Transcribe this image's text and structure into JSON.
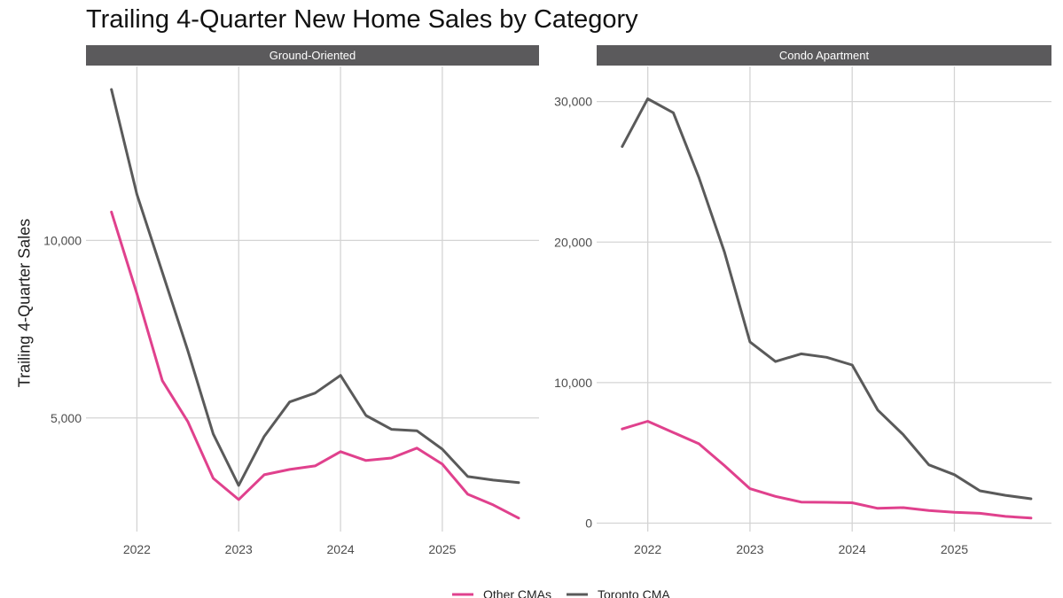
{
  "chart_data": {
    "type": "line",
    "title": "Trailing 4-Quarter New Home Sales by Category",
    "ylabel": "Trailing 4-Quarter Sales",
    "xlabel": "",
    "legend": {
      "position": "bottom",
      "entries": [
        {
          "name": "Other CMAs",
          "color": "#e0418d"
        },
        {
          "name": "Toronto CMA",
          "color": "#5a5a5a"
        }
      ]
    },
    "x": [
      2021.75,
      2022.0,
      2022.25,
      2022.5,
      2022.75,
      2023.0,
      2023.25,
      2023.5,
      2023.75,
      2024.0,
      2024.25,
      2024.5,
      2024.75,
      2025.0,
      2025.25,
      2025.5,
      2025.75
    ],
    "x_ticks": [
      2022,
      2023,
      2024,
      2025
    ],
    "x_tick_labels": [
      "2022",
      "2023",
      "2024",
      "2025"
    ],
    "xlim": [
      2021.5,
      2025.95
    ],
    "panels": [
      {
        "name": "Ground-Oriented",
        "ylim": [
          1800,
          14900
        ],
        "y_ticks": [
          5000,
          10000
        ],
        "y_tick_labels": [
          "5,000",
          "10,000"
        ],
        "series": [
          {
            "name": "Other CMAs",
            "values": [
              10800,
              8500,
              6050,
              4900,
              3300,
              2700,
              3400,
              3550,
              3650,
              4050,
              3800,
              3870,
              4150,
              3700,
              2850,
              2550,
              2180
            ]
          },
          {
            "name": "Toronto CMA",
            "values": [
              14250,
              11300,
              9100,
              6900,
              4550,
              3100,
              4480,
              5450,
              5700,
              6200,
              5070,
              4680,
              4640,
              4120,
              3350,
              3250,
              3180
            ]
          }
        ]
      },
      {
        "name": "Condo Apartment",
        "ylim": [
          -600,
          32500
        ],
        "y_ticks": [
          0,
          10000,
          20000,
          30000
        ],
        "y_tick_labels": [
          "0",
          "10,000",
          "20,000",
          "30,000"
        ],
        "series": [
          {
            "name": "Other CMAs",
            "values": [
              6700,
              7250,
              6450,
              5650,
              4100,
              2450,
              1900,
              1500,
              1480,
              1450,
              1050,
              1100,
              900,
              770,
              700,
              480,
              360
            ]
          },
          {
            "name": "Toronto CMA",
            "values": [
              26800,
              30200,
              29200,
              24600,
              19300,
              12900,
              11500,
              12050,
              11800,
              11250,
              8050,
              6300,
              4150,
              3450,
              2300,
              1980,
              1730
            ]
          }
        ]
      }
    ]
  }
}
